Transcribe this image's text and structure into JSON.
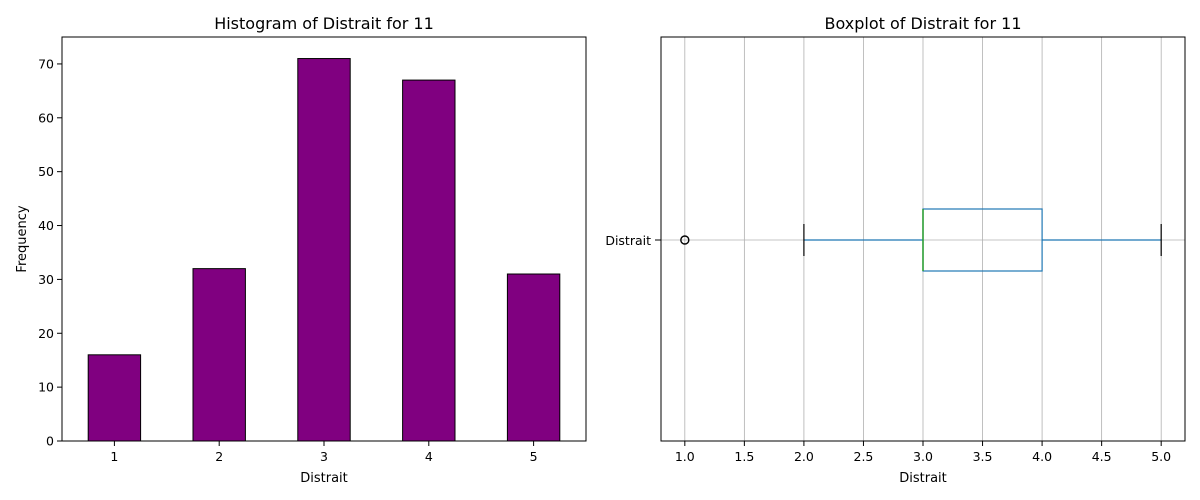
{
  "chart_data": [
    {
      "type": "bar",
      "title": "Histogram of Distrait for 11",
      "xlabel": "Distrait",
      "ylabel": "Frequency",
      "categories": [
        "1",
        "2",
        "3",
        "4",
        "5"
      ],
      "values": [
        16,
        32,
        71,
        67,
        31
      ],
      "ylim": [
        0,
        75
      ],
      "yticks": [
        0,
        10,
        20,
        30,
        40,
        50,
        60,
        70
      ],
      "bar_color": "#800080",
      "edge_color": "#000000",
      "grid": false
    },
    {
      "type": "boxplot",
      "title": "Boxplot of Distrait for 11",
      "xlabel": "Distrait",
      "category": "Distrait",
      "xlim": [
        0.8,
        5.2
      ],
      "xticks": [
        "1.0",
        "1.5",
        "2.0",
        "2.5",
        "3.0",
        "3.5",
        "4.0",
        "4.5",
        "5.0"
      ],
      "whisker_low": 2.0,
      "q1": 3.0,
      "median": 3.0,
      "q3": 4.0,
      "whisker_high": 5.0,
      "outliers": [
        1.0
      ],
      "box_color": "#1f77b4",
      "median_color": "#2ca02c",
      "grid": true
    }
  ]
}
